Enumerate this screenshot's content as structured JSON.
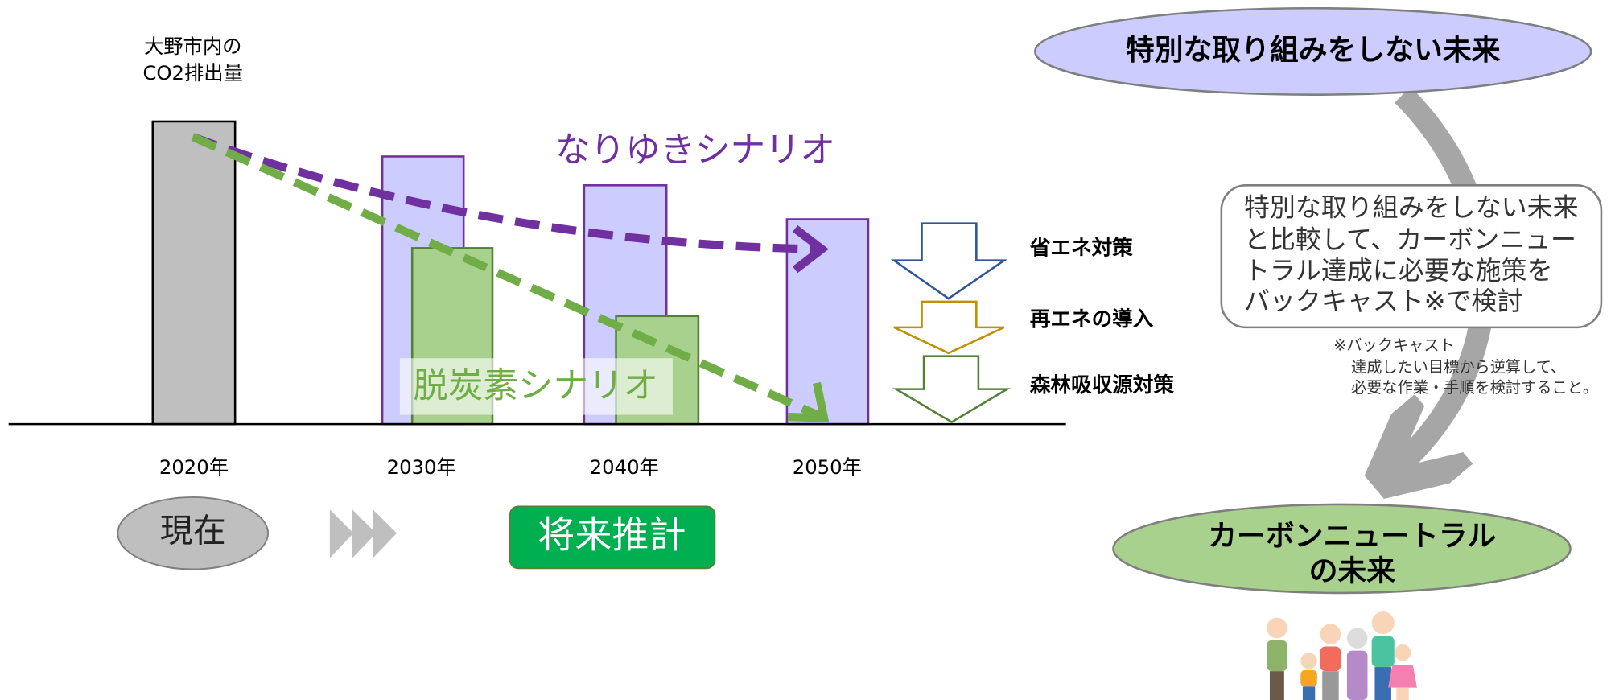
{
  "chart_label": [
    "大野市内の",
    "CO2排出量"
  ],
  "years": [
    "2020年",
    "2030年",
    "2040年",
    "2050年"
  ],
  "scenarios": {
    "trend": "なりゆきシナリオ",
    "decarbon": "脱炭素シナリオ"
  },
  "measures": [
    "省エネ対策",
    "再エネの導入",
    "森林吸収源対策"
  ],
  "timeline": {
    "present": "現在",
    "future": "将来推計"
  },
  "right": {
    "top_future": "特別な取り組みをしない未来",
    "description": [
      "特別な取り組みをしない未来",
      "と比較して、カーボンニュー",
      "トラル達成に必要な施策を",
      "バックキャスト※で検討"
    ],
    "note": [
      "※バックキャスト",
      "達成したい目標から逆算して、",
      "必要な作業・手順を検討すること。"
    ],
    "bottom_future": [
      "カーボンニュートラル",
      "の未来"
    ]
  }
}
